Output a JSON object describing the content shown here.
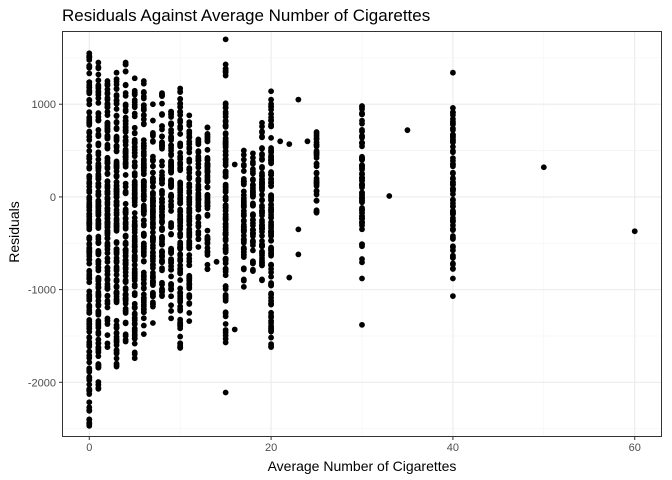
{
  "chart_data": {
    "type": "scatter",
    "title": "Residuals Against Average Number of Cigarettes",
    "xlabel": "Average Number of Cigarettes",
    "ylabel": "Residuals",
    "xlim": [
      -3,
      63
    ],
    "ylim": [
      -2590,
      1790
    ],
    "x_ticks": [
      0,
      20,
      40,
      60
    ],
    "x_tick_labels": [
      "0",
      "20",
      "40",
      "60"
    ],
    "y_ticks": [
      -2000,
      -1000,
      0,
      1000
    ],
    "y_tick_labels": [
      "-2000",
      "-1000",
      "0",
      "1000"
    ],
    "grid": true,
    "legend": "none",
    "point_color": "#000000",
    "columns": [
      {
        "x": 0,
        "min": -2450,
        "max": 1520
      },
      {
        "x": 1,
        "min": -2060,
        "max": 1400
      },
      {
        "x": 2,
        "min": -1620,
        "max": 1250
      },
      {
        "x": 3,
        "min": -1830,
        "max": 1340
      },
      {
        "x": 4,
        "min": -1560,
        "max": 1450
      },
      {
        "x": 5,
        "min": -1740,
        "max": 1280
      },
      {
        "x": 6,
        "min": -1480,
        "max": 1250
      },
      {
        "x": 7,
        "min": -1360,
        "max": 1000
      },
      {
        "x": 8,
        "min": -1070,
        "max": 1120
      },
      {
        "x": 9,
        "min": -1230,
        "max": 920
      },
      {
        "x": 10,
        "min": -1630,
        "max": 1170
      },
      {
        "x": 11,
        "min": -1340,
        "max": 880
      },
      {
        "x": 12,
        "min": -540,
        "max": 620
      },
      {
        "x": 13,
        "min": -780,
        "max": 750
      },
      {
        "x": 15,
        "min": -1570,
        "max": 1430
      },
      {
        "x": 17,
        "min": -970,
        "max": 500
      },
      {
        "x": 18,
        "min": -800,
        "max": 470
      },
      {
        "x": 19,
        "min": -900,
        "max": 800
      },
      {
        "x": 20,
        "min": -1620,
        "max": 1140
      },
      {
        "x": 25,
        "min": -170,
        "max": 700
      },
      {
        "x": 30,
        "min": -880,
        "max": 980
      },
      {
        "x": 40,
        "min": -880,
        "max": 960
      }
    ],
    "outliers": [
      {
        "x": 15,
        "y": 1700
      },
      {
        "x": 15,
        "y": -2110
      },
      {
        "x": 0,
        "y": 1550
      },
      {
        "x": 1,
        "y": 1450
      },
      {
        "x": 0,
        "y": -2470
      },
      {
        "x": 1,
        "y": -2070
      },
      {
        "x": 23,
        "y": 1050
      },
      {
        "x": 35,
        "y": 720
      },
      {
        "x": 33,
        "y": 10
      },
      {
        "x": 50,
        "y": 320
      },
      {
        "x": 60,
        "y": -370
      },
      {
        "x": 40,
        "y": 1340
      },
      {
        "x": 40,
        "y": -1070
      },
      {
        "x": 30,
        "y": -1380
      },
      {
        "x": 16,
        "y": -1430
      },
      {
        "x": 22,
        "y": -870
      },
      {
        "x": 23,
        "y": -350
      },
      {
        "x": 23,
        "y": -620
      },
      {
        "x": 21,
        "y": 600
      },
      {
        "x": 22,
        "y": 570
      },
      {
        "x": 24,
        "y": 600
      },
      {
        "x": 14,
        "y": -700
      },
      {
        "x": 16,
        "y": 350
      },
      {
        "x": 9,
        "y": -1310
      },
      {
        "x": 10,
        "y": -1620
      },
      {
        "x": 20,
        "y": -1610
      },
      {
        "x": 0,
        "y": -2300
      },
      {
        "x": 0,
        "y": -2080
      },
      {
        "x": 4,
        "y": 1430
      }
    ]
  }
}
